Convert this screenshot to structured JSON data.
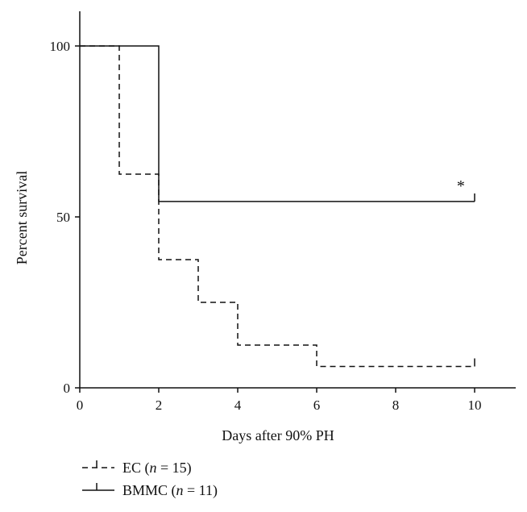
{
  "chart_data": {
    "type": "line",
    "subtype": "kaplan-meier step curve",
    "xlabel": "Days after 90% PH",
    "ylabel": "Percent survival",
    "xlim": [
      0,
      11
    ],
    "ylim": [
      0,
      110
    ],
    "xticks": [
      0,
      2,
      4,
      6,
      8,
      10
    ],
    "yticks": [
      0,
      50,
      100
    ],
    "grid": false,
    "legend_position": "bottom-left",
    "series": [
      {
        "name": "EC",
        "n_label": "n",
        "n_value": "15",
        "style": "dashed",
        "color": "#111111",
        "x": [
          0,
          1,
          2,
          3,
          4,
          6,
          10
        ],
        "y": [
          100,
          62.5,
          37.5,
          25,
          12.5,
          6.25,
          6.25
        ]
      },
      {
        "name": "BMMC",
        "n_label": "n",
        "n_value": "11",
        "style": "solid",
        "color": "#111111",
        "x": [
          0,
          2,
          10
        ],
        "y": [
          100,
          54.5,
          54.5
        ]
      }
    ],
    "annotations": [
      {
        "text": "*",
        "x": 9.65,
        "y": 58
      }
    ]
  }
}
